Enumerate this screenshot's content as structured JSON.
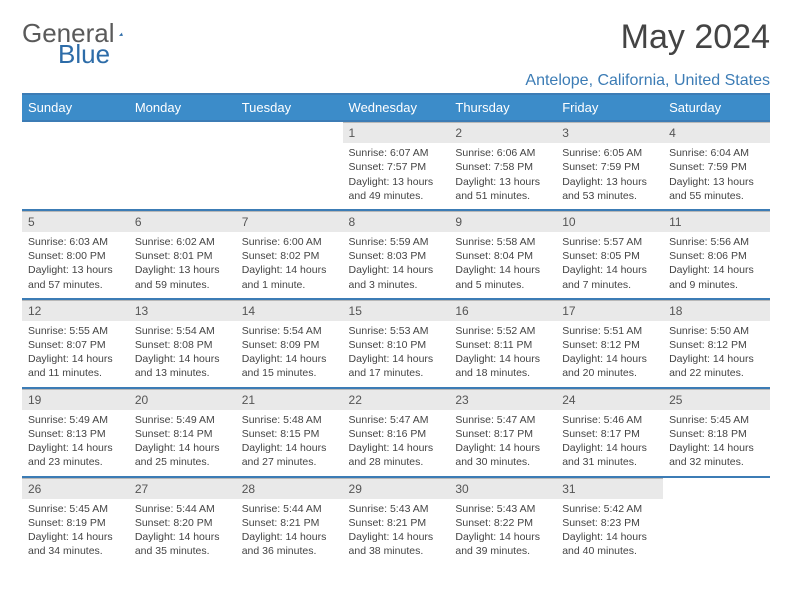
{
  "logo": {
    "part1": "General",
    "part2": "Blue"
  },
  "title": "May 2024",
  "location": "Antelope, California, United States",
  "colors": {
    "header_bg": "#3c8cc9",
    "accent": "#3c7cb5",
    "daynum_bg": "#e9e9e9",
    "text": "#444444"
  },
  "day_headers": [
    "Sunday",
    "Monday",
    "Tuesday",
    "Wednesday",
    "Thursday",
    "Friday",
    "Saturday"
  ],
  "weeks": [
    [
      null,
      null,
      null,
      {
        "n": "1",
        "sr": "Sunrise: 6:07 AM",
        "ss": "Sunset: 7:57 PM",
        "dl": "Daylight: 13 hours and 49 minutes."
      },
      {
        "n": "2",
        "sr": "Sunrise: 6:06 AM",
        "ss": "Sunset: 7:58 PM",
        "dl": "Daylight: 13 hours and 51 minutes."
      },
      {
        "n": "3",
        "sr": "Sunrise: 6:05 AM",
        "ss": "Sunset: 7:59 PM",
        "dl": "Daylight: 13 hours and 53 minutes."
      },
      {
        "n": "4",
        "sr": "Sunrise: 6:04 AM",
        "ss": "Sunset: 7:59 PM",
        "dl": "Daylight: 13 hours and 55 minutes."
      }
    ],
    [
      {
        "n": "5",
        "sr": "Sunrise: 6:03 AM",
        "ss": "Sunset: 8:00 PM",
        "dl": "Daylight: 13 hours and 57 minutes."
      },
      {
        "n": "6",
        "sr": "Sunrise: 6:02 AM",
        "ss": "Sunset: 8:01 PM",
        "dl": "Daylight: 13 hours and 59 minutes."
      },
      {
        "n": "7",
        "sr": "Sunrise: 6:00 AM",
        "ss": "Sunset: 8:02 PM",
        "dl": "Daylight: 14 hours and 1 minute."
      },
      {
        "n": "8",
        "sr": "Sunrise: 5:59 AM",
        "ss": "Sunset: 8:03 PM",
        "dl": "Daylight: 14 hours and 3 minutes."
      },
      {
        "n": "9",
        "sr": "Sunrise: 5:58 AM",
        "ss": "Sunset: 8:04 PM",
        "dl": "Daylight: 14 hours and 5 minutes."
      },
      {
        "n": "10",
        "sr": "Sunrise: 5:57 AM",
        "ss": "Sunset: 8:05 PM",
        "dl": "Daylight: 14 hours and 7 minutes."
      },
      {
        "n": "11",
        "sr": "Sunrise: 5:56 AM",
        "ss": "Sunset: 8:06 PM",
        "dl": "Daylight: 14 hours and 9 minutes."
      }
    ],
    [
      {
        "n": "12",
        "sr": "Sunrise: 5:55 AM",
        "ss": "Sunset: 8:07 PM",
        "dl": "Daylight: 14 hours and 11 minutes."
      },
      {
        "n": "13",
        "sr": "Sunrise: 5:54 AM",
        "ss": "Sunset: 8:08 PM",
        "dl": "Daylight: 14 hours and 13 minutes."
      },
      {
        "n": "14",
        "sr": "Sunrise: 5:54 AM",
        "ss": "Sunset: 8:09 PM",
        "dl": "Daylight: 14 hours and 15 minutes."
      },
      {
        "n": "15",
        "sr": "Sunrise: 5:53 AM",
        "ss": "Sunset: 8:10 PM",
        "dl": "Daylight: 14 hours and 17 minutes."
      },
      {
        "n": "16",
        "sr": "Sunrise: 5:52 AM",
        "ss": "Sunset: 8:11 PM",
        "dl": "Daylight: 14 hours and 18 minutes."
      },
      {
        "n": "17",
        "sr": "Sunrise: 5:51 AM",
        "ss": "Sunset: 8:12 PM",
        "dl": "Daylight: 14 hours and 20 minutes."
      },
      {
        "n": "18",
        "sr": "Sunrise: 5:50 AM",
        "ss": "Sunset: 8:12 PM",
        "dl": "Daylight: 14 hours and 22 minutes."
      }
    ],
    [
      {
        "n": "19",
        "sr": "Sunrise: 5:49 AM",
        "ss": "Sunset: 8:13 PM",
        "dl": "Daylight: 14 hours and 23 minutes."
      },
      {
        "n": "20",
        "sr": "Sunrise: 5:49 AM",
        "ss": "Sunset: 8:14 PM",
        "dl": "Daylight: 14 hours and 25 minutes."
      },
      {
        "n": "21",
        "sr": "Sunrise: 5:48 AM",
        "ss": "Sunset: 8:15 PM",
        "dl": "Daylight: 14 hours and 27 minutes."
      },
      {
        "n": "22",
        "sr": "Sunrise: 5:47 AM",
        "ss": "Sunset: 8:16 PM",
        "dl": "Daylight: 14 hours and 28 minutes."
      },
      {
        "n": "23",
        "sr": "Sunrise: 5:47 AM",
        "ss": "Sunset: 8:17 PM",
        "dl": "Daylight: 14 hours and 30 minutes."
      },
      {
        "n": "24",
        "sr": "Sunrise: 5:46 AM",
        "ss": "Sunset: 8:17 PM",
        "dl": "Daylight: 14 hours and 31 minutes."
      },
      {
        "n": "25",
        "sr": "Sunrise: 5:45 AM",
        "ss": "Sunset: 8:18 PM",
        "dl": "Daylight: 14 hours and 32 minutes."
      }
    ],
    [
      {
        "n": "26",
        "sr": "Sunrise: 5:45 AM",
        "ss": "Sunset: 8:19 PM",
        "dl": "Daylight: 14 hours and 34 minutes."
      },
      {
        "n": "27",
        "sr": "Sunrise: 5:44 AM",
        "ss": "Sunset: 8:20 PM",
        "dl": "Daylight: 14 hours and 35 minutes."
      },
      {
        "n": "28",
        "sr": "Sunrise: 5:44 AM",
        "ss": "Sunset: 8:21 PM",
        "dl": "Daylight: 14 hours and 36 minutes."
      },
      {
        "n": "29",
        "sr": "Sunrise: 5:43 AM",
        "ss": "Sunset: 8:21 PM",
        "dl": "Daylight: 14 hours and 38 minutes."
      },
      {
        "n": "30",
        "sr": "Sunrise: 5:43 AM",
        "ss": "Sunset: 8:22 PM",
        "dl": "Daylight: 14 hours and 39 minutes."
      },
      {
        "n": "31",
        "sr": "Sunrise: 5:42 AM",
        "ss": "Sunset: 8:23 PM",
        "dl": "Daylight: 14 hours and 40 minutes."
      },
      null
    ]
  ]
}
